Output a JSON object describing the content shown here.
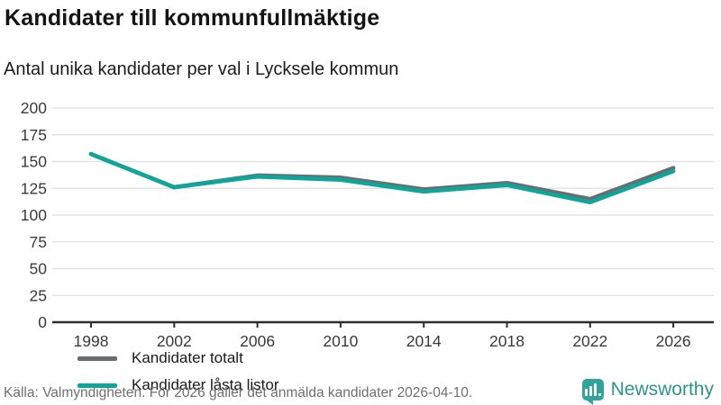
{
  "header": {
    "title": "Kandidater till kommunfullmäktige",
    "subtitle": "Antal unika kandidater per val i Lycksele kommun"
  },
  "chart_data": {
    "type": "line",
    "title": "Kandidater till kommunfullmäktige",
    "subtitle": "Antal unika kandidater per val i Lycksele kommun",
    "x": [
      1998,
      2002,
      2006,
      2010,
      2014,
      2018,
      2022,
      2026
    ],
    "series": [
      {
        "name": "Kandidater totalt",
        "color": "#696d70",
        "values": [
          157,
          126,
          137,
          135,
          124,
          130,
          115,
          144
        ]
      },
      {
        "name": "Kandidater låsta listor",
        "color": "#0ea59b",
        "values": [
          157,
          126,
          136,
          133,
          122,
          128,
          112,
          141
        ]
      }
    ],
    "xlabel": "",
    "ylabel": "",
    "ylim": [
      0,
      200
    ],
    "yticks": [
      0,
      25,
      50,
      75,
      100,
      125,
      150,
      175,
      200
    ],
    "grid": true,
    "legend_position": "inside-bottom-left"
  },
  "footer": {
    "source": "Källa: Valmyndigheten. För 2026 gäller det anmälda kandidater 2026-04-10.",
    "brand_name": "Newsworthy"
  },
  "colors": {
    "accent_teal": "#0ea59b",
    "series_gray": "#696d70",
    "brand_teal": "#31a39a",
    "brand_text": "#2e958d",
    "gridline": "#e4e4e4",
    "axis": "#2e2e2e",
    "tick_label": "#3a3a3a",
    "source_text": "#6f6f6f"
  }
}
